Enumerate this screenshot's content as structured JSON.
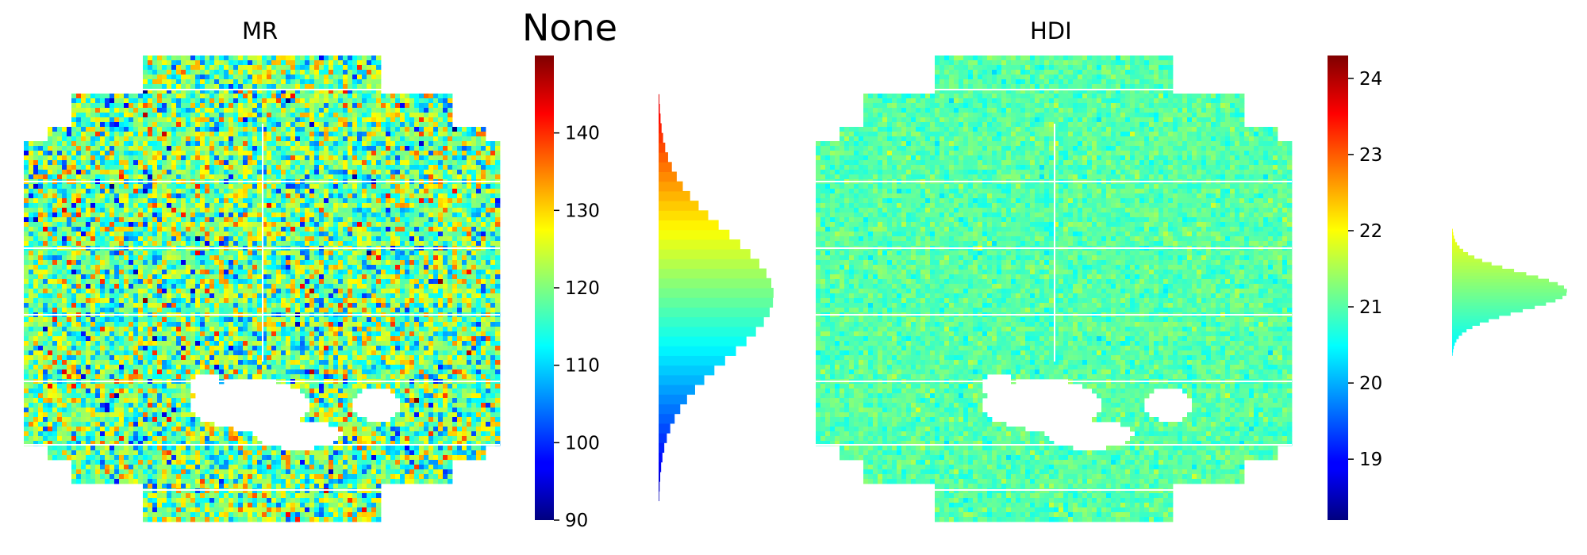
{
  "figure": {
    "suptitle": "None"
  },
  "chart_data": [
    {
      "type": "heatmap",
      "title": "MR",
      "description_key": "wafer-map",
      "colormap": "jet",
      "mean": 119,
      "spread": 8,
      "colorbar": {
        "range": [
          90,
          150
        ],
        "ticks": [
          90,
          100,
          110,
          120,
          130,
          140
        ]
      },
      "histogram": {
        "orientation": "horizontal",
        "bin_range": [
          90,
          150
        ],
        "peak_value": 119,
        "spread": 8
      }
    },
    {
      "type": "heatmap",
      "title": "HDI",
      "colormap": "jet",
      "mean": 21.0,
      "spread": 0.25,
      "colorbar": {
        "range": [
          18.2,
          24.3
        ],
        "ticks": [
          19,
          20,
          21,
          22,
          23,
          24
        ]
      },
      "histogram": {
        "orientation": "horizontal",
        "bin_range": [
          20.1,
          22.2
        ],
        "peak_value": 21.2,
        "spread": 0.25
      }
    }
  ]
}
